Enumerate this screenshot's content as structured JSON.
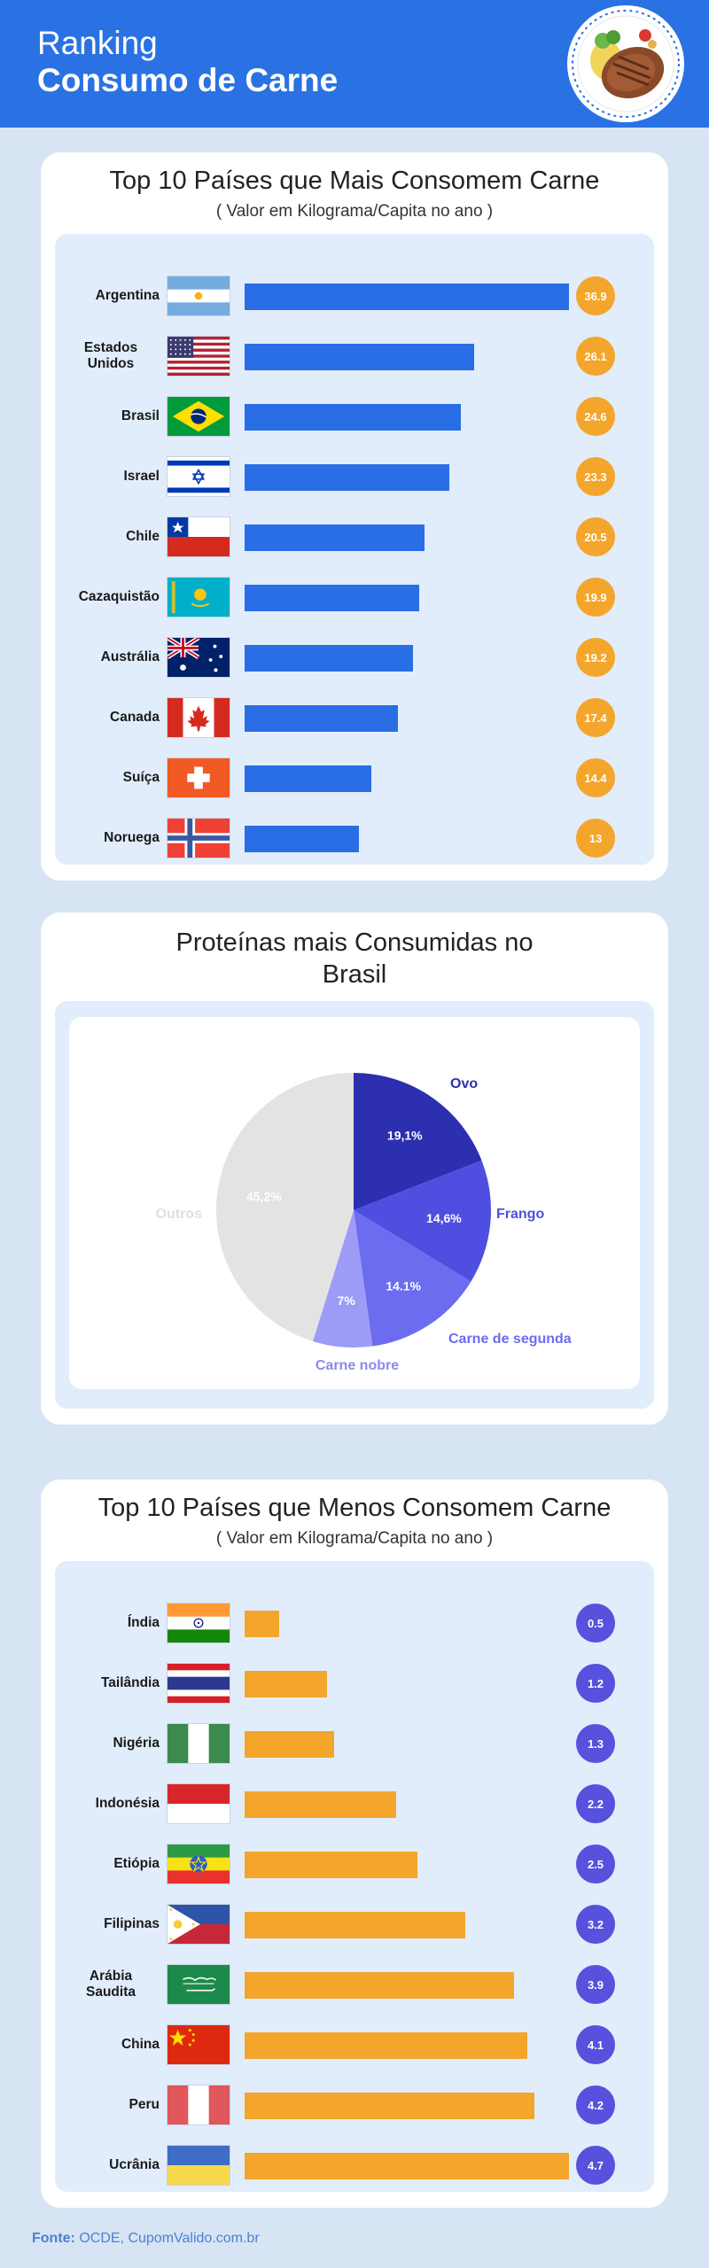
{
  "header": {
    "line1": "Ranking",
    "line2": "Consumo de Carne"
  },
  "colors": {
    "header": "#2a72e3",
    "bar_top": "#2a6ee6",
    "badge_top": "#f4a52b",
    "bar_bottom": "#f4a52b",
    "badge_bottom": "#5751de"
  },
  "top": {
    "title": "Top 10 Países que Mais Consomem Carne",
    "subtitle": "( Valor em Kilograma/Capita no ano )"
  },
  "pie": {
    "title": "Proteínas mais Consumidas no Brasil"
  },
  "bottom": {
    "title": "Top 10 Países que Menos Consomem Carne",
    "subtitle": "( Valor em Kilograma/Capita no ano )"
  },
  "chart_data": [
    {
      "type": "bar",
      "orientation": "horizontal",
      "title": "Top 10 Países que Mais Consomem Carne",
      "subtitle": "( Valor em Kilograma/Capita no ano )",
      "categories": [
        "Argentina",
        "Estados Unidos",
        "Brasil",
        "Israel",
        "Chile",
        "Cazaquistão",
        "Austrália",
        "Canada",
        "Suíça",
        "Noruega"
      ],
      "values": [
        36.9,
        26.1,
        24.6,
        23.3,
        20.5,
        19.9,
        19.2,
        17.4,
        14.4,
        13
      ],
      "labels": [
        "36.9",
        "26.1",
        "24.6",
        "23.3",
        "20.5",
        "19.9",
        "19.2",
        "17.4",
        "14.4",
        "13"
      ],
      "flags": [
        "ar",
        "us",
        "br",
        "il",
        "cl",
        "kz",
        "au",
        "ca",
        "ch",
        "no"
      ],
      "xlim": [
        0,
        36.9
      ]
    },
    {
      "type": "pie",
      "title": "Proteínas mais Consumidas no Brasil",
      "slices": [
        {
          "name": "Ovo",
          "value": 19.1,
          "label": "19,1%",
          "color": "#2b2fb0"
        },
        {
          "name": "Frango",
          "value": 14.6,
          "label": "14,6%",
          "color": "#4e4ee0"
        },
        {
          "name": "Carne de segunda",
          "value": 14.1,
          "label": "14.1%",
          "color": "#6c6cf0"
        },
        {
          "name": "Carne nobre",
          "value": 7,
          "label": "7%",
          "color": "#9c9cf7"
        },
        {
          "name": "Outros",
          "value": 45.2,
          "label": "45,2%",
          "color": "#e3e3e3"
        }
      ]
    },
    {
      "type": "bar",
      "orientation": "horizontal",
      "title": "Top 10 Países que Menos Consomem Carne",
      "subtitle": "( Valor em Kilograma/Capita no ano )",
      "categories": [
        "Índia",
        "Tailândia",
        "Nigéria",
        "Indonésia",
        "Etiópia",
        "Filipinas",
        "Arábia Saudita",
        "China",
        "Peru",
        "Ucrânia"
      ],
      "values": [
        0.5,
        1.2,
        1.3,
        2.2,
        2.5,
        3.2,
        3.9,
        4.1,
        4.2,
        4.7
      ],
      "labels": [
        "0.5",
        "1.2",
        "1.3",
        "2.2",
        "2.5",
        "3.2",
        "3.9",
        "4.1",
        "4.2",
        "4.7"
      ],
      "flags": [
        "in",
        "th",
        "ng",
        "id",
        "et",
        "ph",
        "sa",
        "cn",
        "pe",
        "ua"
      ],
      "xlim": [
        0,
        4.7
      ]
    }
  ],
  "footer": {
    "label": "Fonte:",
    "text": "OCDE, CupomValido.com.br"
  }
}
